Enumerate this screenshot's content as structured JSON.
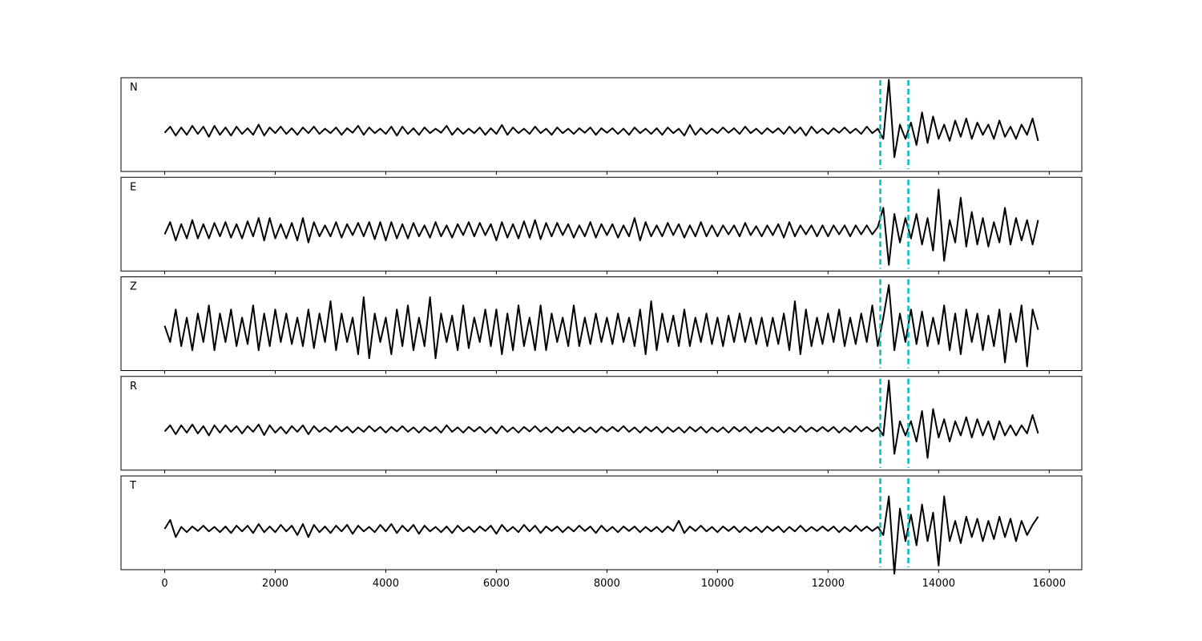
{
  "chart_data": {
    "type": "line",
    "x": [
      0,
      100,
      200,
      300,
      400,
      500,
      600,
      700,
      800,
      900,
      1000,
      1100,
      1200,
      1300,
      1400,
      1500,
      1600,
      1700,
      1800,
      1900,
      2000,
      2100,
      2200,
      2300,
      2400,
      2500,
      2600,
      2700,
      2800,
      2900,
      3000,
      3100,
      3200,
      3300,
      3400,
      3500,
      3600,
      3700,
      3800,
      3900,
      4000,
      4100,
      4200,
      4300,
      4400,
      4500,
      4600,
      4700,
      4800,
      4900,
      5000,
      5100,
      5200,
      5300,
      5400,
      5500,
      5600,
      5700,
      5800,
      5900,
      6000,
      6100,
      6200,
      6300,
      6400,
      6500,
      6600,
      6700,
      6800,
      6900,
      7000,
      7100,
      7200,
      7300,
      7400,
      7500,
      7600,
      7700,
      7800,
      7900,
      8000,
      8100,
      8200,
      8300,
      8400,
      8500,
      8600,
      8700,
      8800,
      8900,
      9000,
      9100,
      9200,
      9300,
      9400,
      9500,
      9600,
      9700,
      9800,
      9900,
      10000,
      10100,
      10200,
      10300,
      10400,
      10500,
      10600,
      10700,
      10800,
      10900,
      11000,
      11100,
      11200,
      11300,
      11400,
      11500,
      11600,
      11700,
      11800,
      11900,
      12000,
      12100,
      12200,
      12300,
      12400,
      12500,
      12600,
      12700,
      12800,
      12900,
      13000,
      13100,
      13200,
      13300,
      13400,
      13500,
      13600,
      13700,
      13800,
      13900,
      14000,
      14100,
      14200,
      14300,
      14400,
      14500,
      14600,
      14700,
      14800,
      14900,
      15000,
      15100,
      15200,
      15300,
      15400,
      15500,
      15600,
      15700,
      15800
    ],
    "xlim": [
      -790,
      16590
    ],
    "xticks": [
      0,
      2000,
      4000,
      6000,
      8000,
      10000,
      12000,
      14000,
      16000
    ],
    "ylim": [
      -1,
      1.3
    ],
    "vlines": [
      12945,
      13452
    ],
    "vline_color": "#00bfbf",
    "series": [
      {
        "name": "N",
        "color": "#000000",
        "values": [
          -0.05,
          0.1,
          -0.12,
          0.08,
          -0.1,
          0.12,
          -0.08,
          0.1,
          -0.15,
          0.12,
          -0.1,
          0.08,
          -0.12,
          0.1,
          -0.08,
          0.06,
          -0.1,
          0.15,
          -0.12,
          0.08,
          -0.06,
          0.1,
          -0.08,
          0.06,
          -0.1,
          0.08,
          -0.06,
          0.1,
          -0.08,
          0.05,
          -0.06,
          0.08,
          -0.1,
          0.06,
          -0.05,
          0.12,
          -0.1,
          0.08,
          -0.06,
          0.05,
          -0.08,
          0.1,
          -0.12,
          0.1,
          -0.08,
          0.06,
          -0.1,
          0.08,
          -0.06,
          0.05,
          -0.05,
          0.12,
          -0.1,
          0.06,
          -0.08,
          0.05,
          -0.06,
          0.08,
          -0.1,
          0.06,
          -0.08,
          0.14,
          -0.1,
          0.08,
          -0.06,
          0.05,
          -0.08,
          0.1,
          -0.06,
          0.05,
          -0.1,
          0.08,
          -0.06,
          0.05,
          -0.08,
          0.06,
          -0.05,
          0.08,
          -0.1,
          0.06,
          -0.05,
          0.06,
          -0.08,
          0.05,
          -0.1,
          0.08,
          -0.06,
          0.05,
          -0.08,
          0.06,
          -0.1,
          0.08,
          -0.06,
          0.05,
          -0.12,
          0.14,
          -0.1,
          0.06,
          -0.08,
          0.05,
          -0.06,
          0.08,
          -0.05,
          0.06,
          -0.08,
          0.1,
          -0.06,
          0.05,
          -0.08,
          0.06,
          -0.05,
          0.06,
          -0.08,
          0.1,
          -0.06,
          0.08,
          -0.12,
          0.1,
          -0.06,
          0.05,
          -0.08,
          0.06,
          -0.05,
          0.08,
          -0.06,
          0.05,
          -0.08,
          0.1,
          -0.06,
          0.05,
          -0.2,
          1.25,
          -0.65,
          0.15,
          -0.2,
          0.2,
          -0.35,
          0.45,
          -0.3,
          0.35,
          -0.2,
          0.15,
          -0.25,
          0.25,
          -0.15,
          0.3,
          -0.2,
          0.2,
          -0.1,
          0.15,
          -0.2,
          0.25,
          -0.15,
          0.1,
          -0.2,
          0.15,
          -0.1,
          0.3,
          -0.25
        ]
      },
      {
        "name": "E",
        "color": "#000000",
        "values": [
          -0.1,
          0.2,
          -0.25,
          0.15,
          -0.2,
          0.25,
          -0.2,
          0.15,
          -0.2,
          0.18,
          -0.15,
          0.2,
          -0.18,
          0.15,
          -0.2,
          0.22,
          -0.15,
          0.3,
          -0.25,
          0.3,
          -0.2,
          0.15,
          -0.2,
          0.18,
          -0.25,
          0.3,
          -0.3,
          0.2,
          -0.15,
          0.12,
          -0.15,
          0.2,
          -0.18,
          0.15,
          -0.12,
          0.18,
          -0.15,
          0.2,
          -0.22,
          0.2,
          -0.25,
          0.2,
          -0.2,
          0.15,
          -0.2,
          0.18,
          -0.15,
          0.12,
          -0.18,
          0.2,
          -0.15,
          0.12,
          -0.18,
          0.15,
          -0.12,
          0.2,
          -0.15,
          0.18,
          -0.12,
          0.15,
          -0.25,
          0.2,
          -0.18,
          0.15,
          -0.2,
          0.22,
          -0.18,
          0.25,
          -0.22,
          0.18,
          -0.15,
          0.18,
          -0.12,
          0.15,
          -0.18,
          0.12,
          -0.15,
          0.2,
          -0.18,
          0.15,
          -0.12,
          0.15,
          -0.18,
          0.12,
          -0.15,
          0.3,
          -0.25,
          0.2,
          -0.15,
          0.12,
          -0.15,
          0.18,
          -0.12,
          0.15,
          -0.18,
          0.12,
          -0.15,
          0.2,
          -0.15,
          0.12,
          -0.15,
          0.12,
          -0.1,
          0.12,
          -0.15,
          0.18,
          -0.12,
          0.1,
          -0.15,
          0.12,
          -0.12,
          0.15,
          -0.18,
          0.2,
          -0.15,
          0.12,
          -0.1,
          0.12,
          -0.15,
          0.12,
          -0.15,
          0.12,
          -0.1,
          0.12,
          -0.15,
          0.12,
          -0.1,
          0.12,
          -0.1,
          0.08,
          0.55,
          -0.85,
          0.4,
          -0.3,
          0.3,
          -0.2,
          0.4,
          -0.35,
          0.3,
          -0.5,
          1.0,
          -0.75,
          0.25,
          -0.3,
          0.8,
          -0.4,
          0.45,
          -0.35,
          0.3,
          -0.4,
          0.2,
          -0.3,
          0.55,
          -0.35,
          0.3,
          -0.25,
          0.25,
          -0.35,
          0.25
        ]
      },
      {
        "name": "Z",
        "color": "#000000",
        "values": [
          0.1,
          -0.3,
          0.5,
          -0.4,
          0.3,
          -0.5,
          0.4,
          -0.3,
          0.6,
          -0.5,
          0.4,
          -0.3,
          0.5,
          -0.4,
          0.3,
          -0.35,
          0.6,
          -0.5,
          0.4,
          -0.4,
          0.5,
          -0.3,
          0.4,
          -0.35,
          0.3,
          -0.4,
          0.5,
          -0.45,
          0.4,
          -0.3,
          0.7,
          -0.5,
          0.4,
          -0.3,
          0.3,
          -0.6,
          0.8,
          -0.7,
          0.4,
          -0.3,
          0.3,
          -0.6,
          0.5,
          -0.4,
          0.6,
          -0.5,
          0.3,
          -0.4,
          0.8,
          -0.7,
          0.4,
          -0.3,
          0.35,
          -0.5,
          0.6,
          -0.45,
          0.3,
          -0.3,
          0.5,
          -0.4,
          0.5,
          -0.6,
          0.4,
          -0.5,
          0.6,
          -0.4,
          0.3,
          -0.5,
          0.6,
          -0.5,
          0.4,
          -0.3,
          0.3,
          -0.4,
          0.6,
          -0.4,
          0.3,
          -0.35,
          0.4,
          -0.3,
          0.3,
          -0.35,
          0.4,
          -0.3,
          0.3,
          -0.4,
          0.5,
          -0.6,
          0.7,
          -0.5,
          0.4,
          -0.3,
          0.35,
          -0.4,
          0.5,
          -0.4,
          0.3,
          -0.3,
          0.4,
          -0.35,
          0.3,
          -0.4,
          0.35,
          -0.3,
          0.4,
          -0.3,
          0.3,
          -0.35,
          0.3,
          -0.4,
          0.3,
          -0.35,
          0.4,
          -0.5,
          0.7,
          -0.6,
          0.5,
          -0.4,
          0.3,
          -0.35,
          0.4,
          -0.3,
          0.5,
          -0.4,
          0.3,
          -0.35,
          0.4,
          -0.3,
          0.6,
          -0.4,
          0.3,
          1.1,
          -0.5,
          0.4,
          -0.3,
          0.5,
          -0.35,
          0.45,
          -0.4,
          0.3,
          -0.35,
          0.6,
          -0.5,
          0.4,
          -0.6,
          0.5,
          -0.3,
          0.4,
          -0.5,
          0.35,
          -0.4,
          0.5,
          -0.8,
          0.4,
          -0.3,
          0.6,
          -0.9,
          0.5,
          0.0
        ]
      },
      {
        "name": "R",
        "color": "#000000",
        "values": [
          -0.05,
          0.1,
          -0.12,
          0.1,
          -0.08,
          0.12,
          -0.1,
          0.08,
          -0.15,
          0.1,
          -0.08,
          0.1,
          -0.06,
          0.08,
          -0.1,
          0.08,
          -0.06,
          0.12,
          -0.14,
          0.1,
          -0.08,
          0.06,
          -0.1,
          0.08,
          -0.06,
          0.1,
          -0.12,
          0.08,
          -0.06,
          0.05,
          -0.06,
          0.08,
          -0.05,
          0.06,
          -0.08,
          0.05,
          -0.06,
          0.08,
          -0.05,
          0.06,
          -0.08,
          0.06,
          -0.05,
          0.08,
          -0.06,
          0.05,
          -0.08,
          0.06,
          -0.05,
          0.06,
          -0.08,
          0.1,
          -0.06,
          0.05,
          -0.08,
          0.06,
          -0.05,
          0.06,
          -0.08,
          0.05,
          -0.1,
          0.08,
          -0.06,
          0.05,
          -0.08,
          0.06,
          -0.05,
          0.08,
          -0.06,
          0.05,
          -0.08,
          0.06,
          -0.05,
          0.06,
          -0.08,
          0.05,
          -0.06,
          0.05,
          -0.08,
          0.06,
          -0.05,
          0.06,
          -0.05,
          0.08,
          -0.06,
          0.05,
          -0.08,
          0.06,
          -0.05,
          0.06,
          -0.08,
          0.05,
          -0.06,
          0.05,
          -0.08,
          0.06,
          -0.05,
          0.06,
          -0.08,
          0.05,
          -0.06,
          0.05,
          -0.08,
          0.06,
          -0.05,
          0.06,
          -0.08,
          0.05,
          -0.06,
          0.05,
          -0.05,
          0.06,
          -0.08,
          0.05,
          -0.06,
          0.08,
          -0.06,
          0.05,
          -0.05,
          0.06,
          -0.05,
          0.06,
          -0.08,
          0.05,
          -0.06,
          0.08,
          -0.05,
          0.06,
          -0.05,
          0.05,
          -0.15,
          1.2,
          -0.6,
          0.2,
          -0.15,
          0.2,
          -0.3,
          0.45,
          -0.7,
          0.5,
          -0.2,
          0.25,
          -0.3,
          0.2,
          -0.15,
          0.3,
          -0.2,
          0.25,
          -0.15,
          0.2,
          -0.25,
          0.2,
          -0.15,
          0.1,
          -0.15,
          0.1,
          -0.1,
          0.35,
          -0.1
        ]
      },
      {
        "name": "T",
        "color": "#000000",
        "values": [
          0.0,
          0.22,
          -0.2,
          0.05,
          -0.08,
          0.06,
          -0.05,
          0.08,
          -0.06,
          0.05,
          -0.08,
          0.06,
          -0.1,
          0.08,
          -0.06,
          0.08,
          -0.1,
          0.12,
          -0.08,
          0.06,
          -0.08,
          0.1,
          -0.06,
          0.08,
          -0.15,
          0.12,
          -0.2,
          0.1,
          -0.08,
          0.06,
          -0.1,
          0.08,
          -0.06,
          0.1,
          -0.12,
          0.08,
          -0.06,
          0.05,
          -0.08,
          0.1,
          -0.06,
          0.12,
          -0.1,
          0.08,
          -0.06,
          0.1,
          -0.12,
          0.08,
          -0.06,
          0.05,
          -0.08,
          0.06,
          -0.1,
          0.08,
          -0.06,
          0.05,
          -0.08,
          0.06,
          -0.05,
          0.08,
          -0.12,
          0.1,
          -0.06,
          0.05,
          -0.08,
          0.1,
          -0.06,
          0.08,
          -0.1,
          0.06,
          -0.05,
          0.06,
          -0.08,
          0.05,
          -0.06,
          0.08,
          -0.05,
          0.06,
          -0.1,
          0.08,
          -0.06,
          0.05,
          -0.08,
          0.06,
          -0.05,
          0.06,
          -0.08,
          0.05,
          -0.06,
          0.05,
          -0.08,
          0.06,
          -0.05,
          0.2,
          -0.1,
          0.06,
          -0.05,
          0.08,
          -0.06,
          0.05,
          -0.08,
          0.06,
          -0.05,
          0.06,
          -0.08,
          0.05,
          -0.06,
          0.05,
          -0.08,
          0.06,
          -0.05,
          0.06,
          -0.08,
          0.05,
          -0.06,
          0.08,
          -0.06,
          0.05,
          -0.05,
          0.06,
          -0.05,
          0.06,
          -0.08,
          0.05,
          -0.06,
          0.08,
          -0.05,
          0.06,
          -0.05,
          0.05,
          -0.15,
          0.8,
          -1.1,
          0.5,
          -0.3,
          0.35,
          -0.4,
          0.6,
          -0.3,
          0.4,
          -0.9,
          0.8,
          -0.3,
          0.2,
          -0.35,
          0.3,
          -0.2,
          0.25,
          -0.3,
          0.2,
          -0.25,
          0.3,
          -0.2,
          0.25,
          -0.3,
          0.2,
          -0.15,
          0.1,
          0.3
        ]
      }
    ]
  }
}
